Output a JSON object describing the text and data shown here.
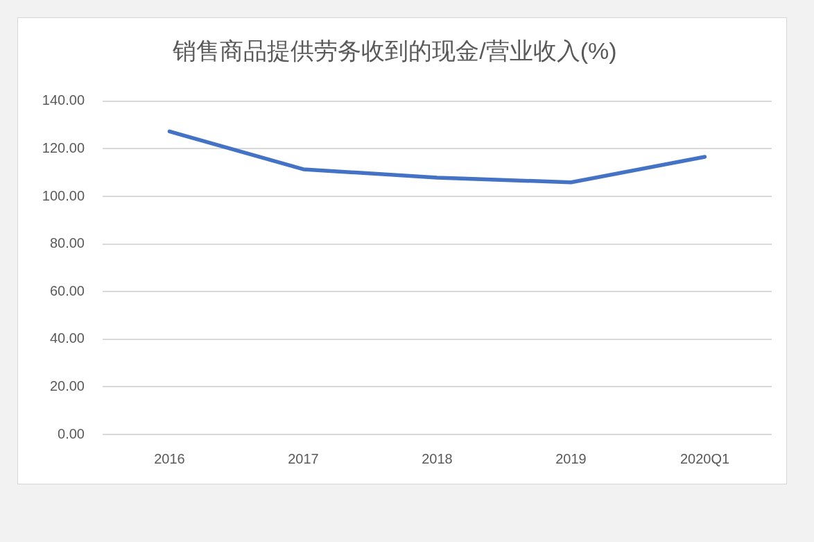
{
  "chart_data": {
    "type": "line",
    "title": "销售商品提供劳务收到的现金/营业收入(%)",
    "categories": [
      "2016",
      "2017",
      "2018",
      "2019",
      "2020Q1"
    ],
    "series": [
      {
        "color": "#4472c4",
        "values": [
          127.3,
          111.4,
          107.9,
          105.9,
          116.6
        ]
      }
    ],
    "ylim": [
      0,
      140
    ],
    "yticks": [
      {
        "value": 0,
        "label": "0.00"
      },
      {
        "value": 20,
        "label": "20.00"
      },
      {
        "value": 40,
        "label": "40.00"
      },
      {
        "value": 60,
        "label": "60.00"
      },
      {
        "value": 80,
        "label": "80.00"
      },
      {
        "value": 100,
        "label": "100.00"
      },
      {
        "value": 120,
        "label": "120.00"
      },
      {
        "value": 140,
        "label": "140.00"
      }
    ],
    "grid": "y",
    "legend": false,
    "marker": "none"
  }
}
